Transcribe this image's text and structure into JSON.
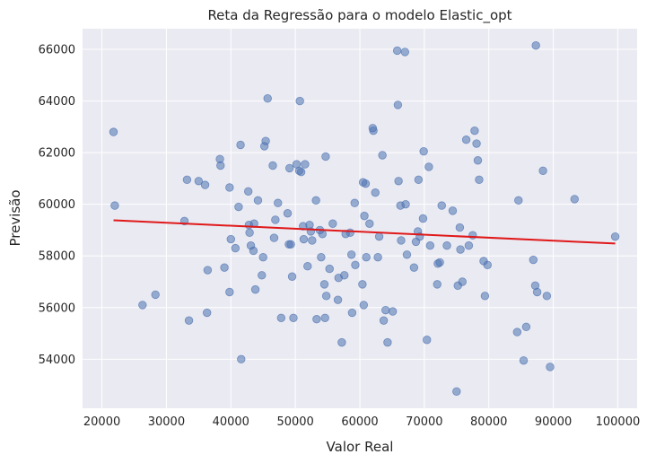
{
  "chart_data": {
    "type": "scatter",
    "title": "Reta da Regressão para o modelo Elastic_opt",
    "xlabel": "Valor Real",
    "ylabel": "Previsão",
    "xlim": [
      17000,
      103000
    ],
    "ylim": [
      52100,
      66800
    ],
    "xticks": [
      20000,
      30000,
      40000,
      50000,
      60000,
      70000,
      80000,
      90000,
      100000
    ],
    "yticks": [
      54000,
      56000,
      58000,
      60000,
      62000,
      64000,
      66000
    ],
    "grid": true,
    "colors": {
      "points": "#4c72b0",
      "line": "#e0191a",
      "background": "#eaeaf2",
      "grid": "#ffffff"
    },
    "points": [
      [
        21800,
        62800
      ],
      [
        22000,
        59950
      ],
      [
        26300,
        56100
      ],
      [
        28300,
        56500
      ],
      [
        32800,
        59350
      ],
      [
        33200,
        60950
      ],
      [
        33500,
        55500
      ],
      [
        35000,
        60900
      ],
      [
        36000,
        60750
      ],
      [
        36300,
        55800
      ],
      [
        36400,
        57450
      ],
      [
        38300,
        61750
      ],
      [
        38400,
        61500
      ],
      [
        39000,
        57550
      ],
      [
        39800,
        60650
      ],
      [
        39800,
        56600
      ],
      [
        40000,
        58650
      ],
      [
        40700,
        58300
      ],
      [
        41200,
        59900
      ],
      [
        41500,
        62300
      ],
      [
        41600,
        54000
      ],
      [
        42700,
        60500
      ],
      [
        42800,
        59200
      ],
      [
        42900,
        58900
      ],
      [
        43100,
        58400
      ],
      [
        43500,
        58200
      ],
      [
        43600,
        59250
      ],
      [
        43800,
        56700
      ],
      [
        44200,
        60150
      ],
      [
        44800,
        57250
      ],
      [
        45000,
        57950
      ],
      [
        45200,
        62250
      ],
      [
        45400,
        62450
      ],
      [
        45700,
        64100
      ],
      [
        46500,
        61500
      ],
      [
        46700,
        58700
      ],
      [
        46900,
        59400
      ],
      [
        47300,
        60050
      ],
      [
        47800,
        55600
      ],
      [
        48800,
        59650
      ],
      [
        49000,
        58450
      ],
      [
        49100,
        61400
      ],
      [
        49300,
        58450
      ],
      [
        49500,
        57200
      ],
      [
        49700,
        55600
      ],
      [
        50200,
        61550
      ],
      [
        50600,
        61300
      ],
      [
        50700,
        64000
      ],
      [
        50900,
        61250
      ],
      [
        51200,
        59150
      ],
      [
        51300,
        58650
      ],
      [
        51500,
        61550
      ],
      [
        51900,
        57600
      ],
      [
        52200,
        59200
      ],
      [
        52400,
        58950
      ],
      [
        52600,
        58600
      ],
      [
        53200,
        60150
      ],
      [
        53300,
        55550
      ],
      [
        53800,
        59000
      ],
      [
        54000,
        57950
      ],
      [
        54200,
        58850
      ],
      [
        54500,
        56900
      ],
      [
        54600,
        55600
      ],
      [
        54700,
        61850
      ],
      [
        54800,
        56450
      ],
      [
        55300,
        57500
      ],
      [
        55800,
        59250
      ],
      [
        56600,
        56300
      ],
      [
        56700,
        57150
      ],
      [
        57200,
        54650
      ],
      [
        57600,
        57250
      ],
      [
        57800,
        58850
      ],
      [
        58500,
        58900
      ],
      [
        58700,
        58050
      ],
      [
        58800,
        55800
      ],
      [
        59200,
        60050
      ],
      [
        59300,
        57650
      ],
      [
        60400,
        56900
      ],
      [
        60500,
        60850
      ],
      [
        60600,
        56100
      ],
      [
        60700,
        59550
      ],
      [
        60900,
        60800
      ],
      [
        61000,
        57950
      ],
      [
        61500,
        59250
      ],
      [
        62000,
        62950
      ],
      [
        62100,
        62850
      ],
      [
        62400,
        60450
      ],
      [
        62800,
        57950
      ],
      [
        63000,
        58750
      ],
      [
        63500,
        61900
      ],
      [
        63700,
        55500
      ],
      [
        64000,
        55900
      ],
      [
        64300,
        54650
      ],
      [
        65100,
        55850
      ],
      [
        65800,
        65950
      ],
      [
        65900,
        63850
      ],
      [
        66000,
        60900
      ],
      [
        66300,
        59950
      ],
      [
        66400,
        58600
      ],
      [
        67000,
        65900
      ],
      [
        67100,
        60000
      ],
      [
        67300,
        58050
      ],
      [
        68400,
        57550
      ],
      [
        68700,
        58550
      ],
      [
        69000,
        58950
      ],
      [
        69100,
        60950
      ],
      [
        69300,
        58750
      ],
      [
        69800,
        59450
      ],
      [
        69900,
        62050
      ],
      [
        70400,
        54750
      ],
      [
        70700,
        61450
      ],
      [
        70900,
        58400
      ],
      [
        72000,
        56900
      ],
      [
        72100,
        57700
      ],
      [
        72400,
        57750
      ],
      [
        72700,
        59950
      ],
      [
        73500,
        58400
      ],
      [
        74400,
        59750
      ],
      [
        75000,
        52750
      ],
      [
        75200,
        56850
      ],
      [
        75500,
        59100
      ],
      [
        75600,
        58250
      ],
      [
        75900,
        57000
      ],
      [
        76500,
        62500
      ],
      [
        76900,
        58400
      ],
      [
        77500,
        58800
      ],
      [
        77800,
        62850
      ],
      [
        78100,
        62350
      ],
      [
        78300,
        61700
      ],
      [
        78500,
        60950
      ],
      [
        79200,
        57800
      ],
      [
        79400,
        56450
      ],
      [
        79800,
        57650
      ],
      [
        84400,
        55050
      ],
      [
        84600,
        60150
      ],
      [
        85400,
        53950
      ],
      [
        85800,
        55250
      ],
      [
        86900,
        57850
      ],
      [
        87200,
        56850
      ],
      [
        87300,
        66150
      ],
      [
        87500,
        56600
      ],
      [
        88400,
        61300
      ],
      [
        89000,
        56450
      ],
      [
        89500,
        53700
      ],
      [
        93300,
        60200
      ],
      [
        99600,
        58750
      ]
    ],
    "regression_line": {
      "x": [
        21800,
        99600
      ],
      "y": [
        59380,
        58480
      ]
    }
  }
}
